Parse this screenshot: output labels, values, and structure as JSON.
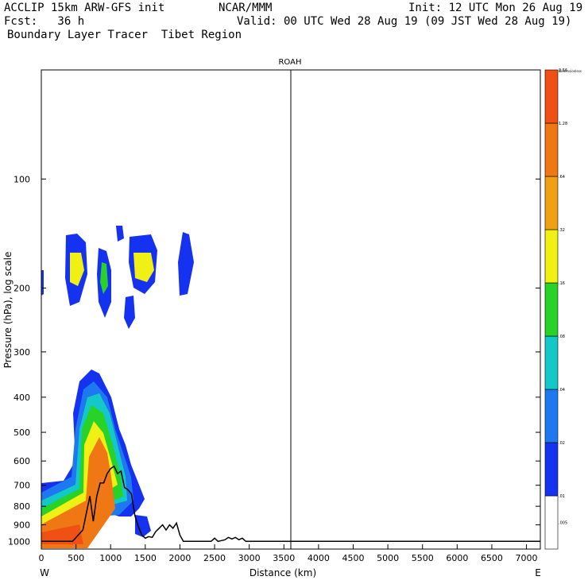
{
  "header": {
    "model": "ACCLIP 15km ARW-GFS init",
    "org": "NCAR/MMM",
    "init": "Init: 12 UTC Mon 26 Aug 19",
    "fcst": "Fcst:   36 h",
    "valid": "Valid: 00 UTC Wed 28 Aug 19 (09 JST Wed 28 Aug 19)",
    "product": "Boundary Layer Tracer  Tibet Region"
  },
  "chart_data": {
    "type": "heatmap",
    "title": "ROAH",
    "xlabel": "Distance (km)",
    "ylabel": "Pressure (hPa), log scale",
    "x_start_label": "W",
    "x_end_label": "E",
    "xlim": [
      0,
      7200
    ],
    "ylim": [
      1050,
      50
    ],
    "y_scale": "log",
    "x_ticks": [
      "0",
      "500",
      "1000",
      "1500",
      "2000",
      "2500",
      "3000",
      "3500",
      "4000",
      "4500",
      "5000",
      "5500",
      "6000",
      "6500",
      "7000"
    ],
    "y_ticks": [
      "100",
      "200",
      "300",
      "400",
      "500",
      "600",
      "700",
      "800",
      "900",
      "1000"
    ],
    "station_marker_x": 3600,
    "terrain_profile": {
      "x": [
        0,
        450,
        600,
        700,
        750,
        800,
        850,
        900,
        950,
        1000,
        1050,
        1100,
        1150,
        1200,
        1250,
        1300,
        1350,
        1400,
        1450,
        1500,
        1550,
        1600,
        1650,
        1700,
        1750,
        1800,
        1850,
        1900,
        1950,
        2000,
        2050,
        2200,
        2450,
        2500,
        2550,
        2650,
        2700,
        2750,
        2800,
        2850,
        2900,
        2950,
        3000,
        3500,
        4000,
        7200
      ],
      "p": [
        1000,
        1000,
        930,
        750,
        880,
        750,
        690,
        690,
        650,
        630,
        620,
        650,
        640,
        710,
        720,
        740,
        850,
        910,
        960,
        980,
        970,
        975,
        940,
        920,
        900,
        930,
        900,
        920,
        890,
        960,
        1000,
        1000,
        1000,
        980,
        1000,
        990,
        975,
        985,
        975,
        990,
        980,
        1000,
        1000,
        1000,
        1000,
        1000
      ]
    },
    "colorbar": {
      "unit": "Dimensionless",
      "levels": [
        "",
        ".005",
        ".01",
        ".02",
        ".04",
        ".08",
        ".16",
        ".32",
        ".64",
        "1.28",
        "2.56"
      ],
      "colors": [
        "#ffffff",
        "#1432f0",
        "#1e78f0",
        "#14c8c8",
        "#28d228",
        "#f0f014",
        "#f0a014",
        "#f07814",
        "#f05014"
      ]
    }
  }
}
